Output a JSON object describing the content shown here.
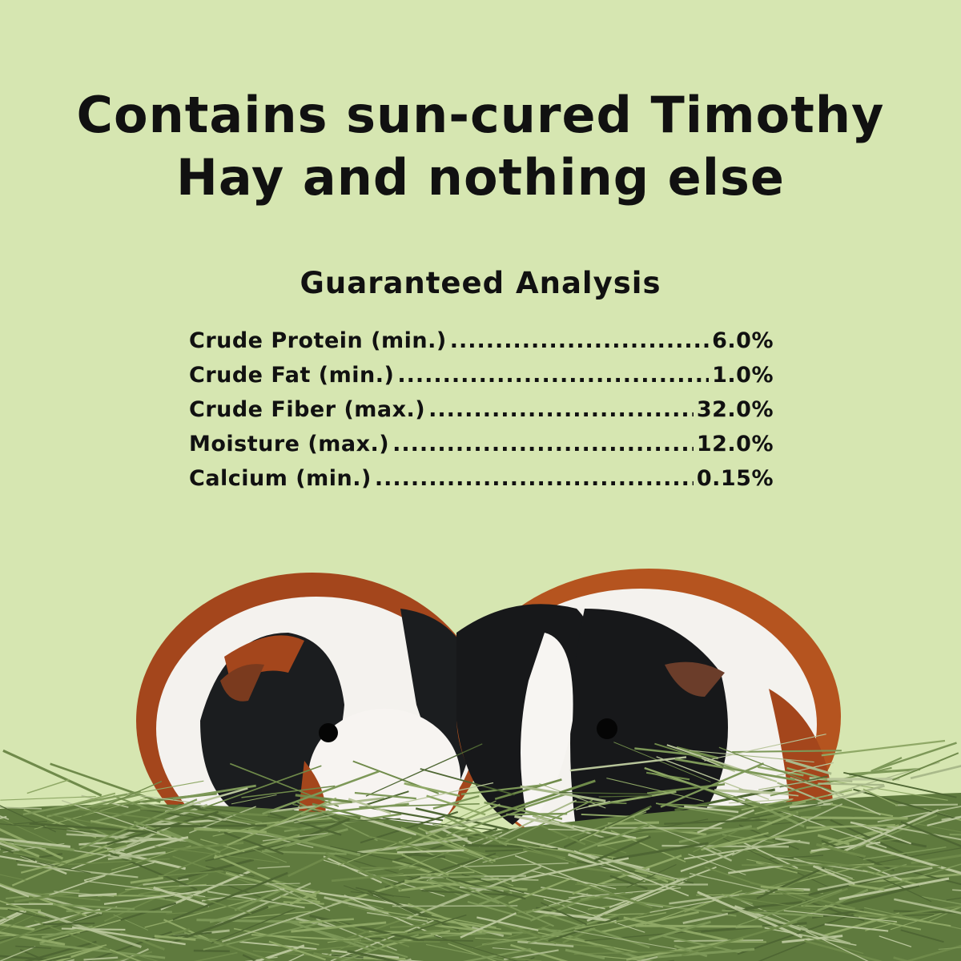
{
  "headline": {
    "line1": "Contains sun-cured Timothy",
    "line2": "Hay and nothing else"
  },
  "analysis": {
    "title": "Guaranteed Analysis",
    "rows": [
      {
        "label": "Crude Protein (min.)",
        "value": "6.0%"
      },
      {
        "label": "Crude Fat (min.)",
        "value": "1.0%"
      },
      {
        "label": "Crude Fiber (max.)",
        "value": "32.0%"
      },
      {
        "label": "Moisture (max.)",
        "value": "12.0%"
      },
      {
        "label": "Calcium (min.)",
        "value": "0.15%"
      }
    ]
  },
  "colors": {
    "background": "#d6e6b1",
    "text": "#111111",
    "hay": "#6f8a4a"
  },
  "images": [
    "two-guinea-pigs",
    "timothy-hay-pile"
  ]
}
